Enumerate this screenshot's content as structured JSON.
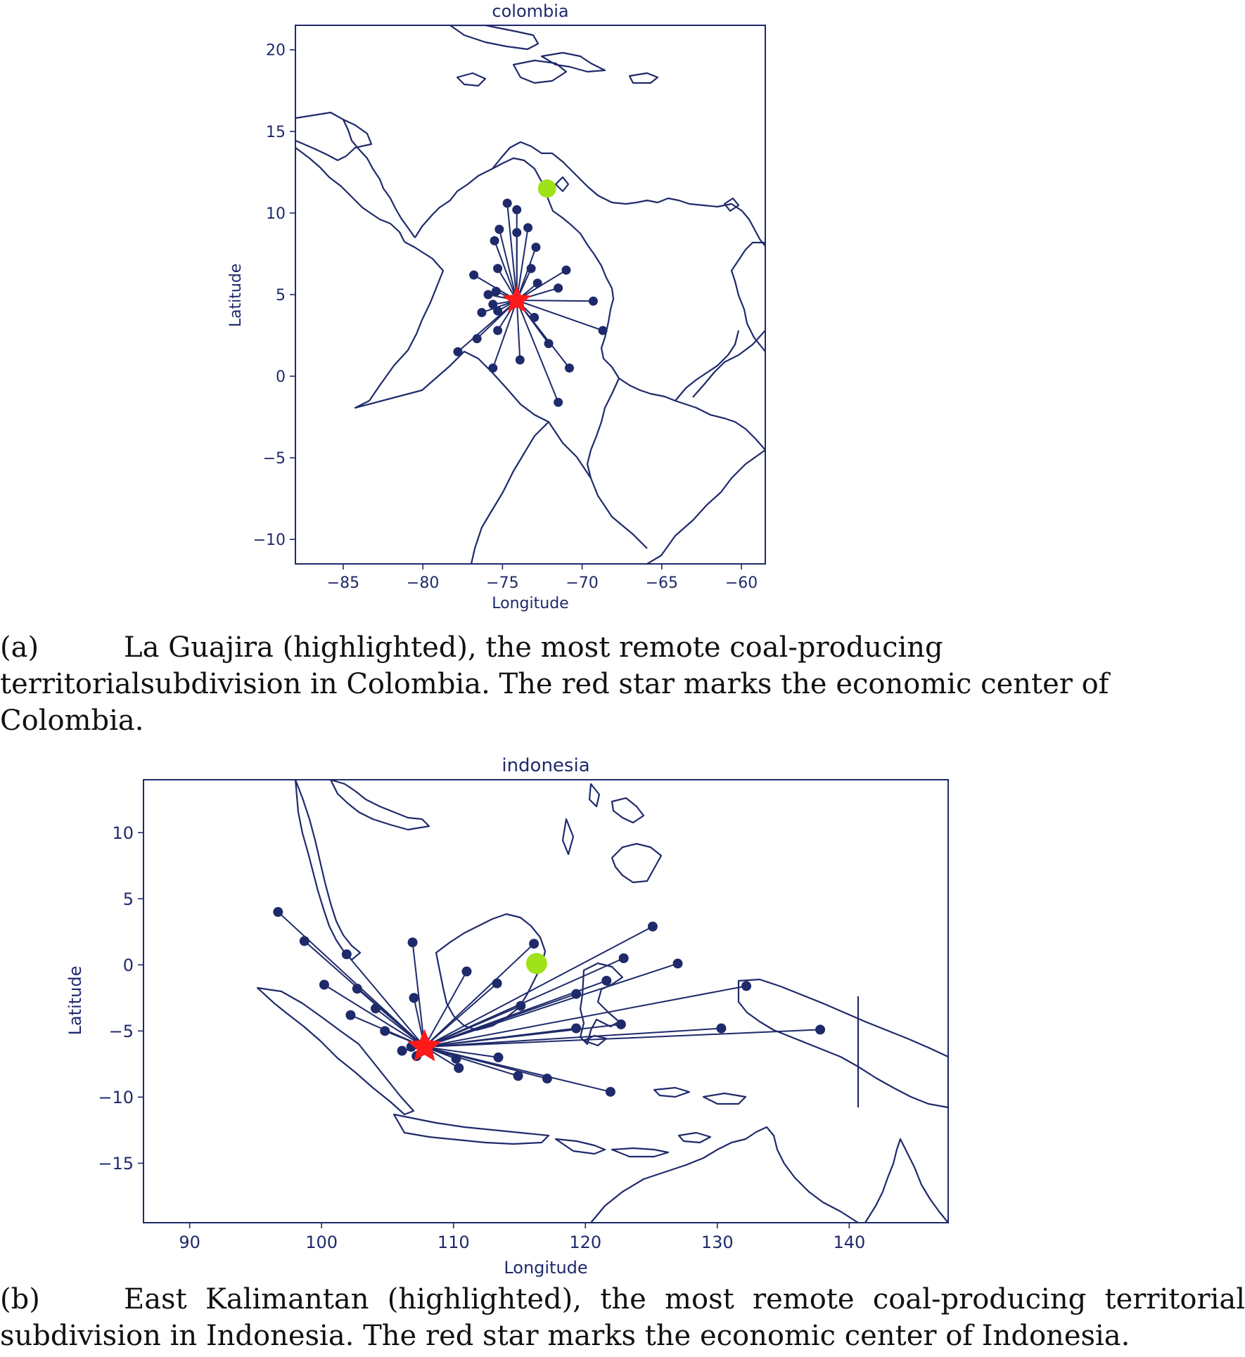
{
  "style": {
    "axis_color": "#1f2a6b",
    "connector_color": "#1f2a6b",
    "star_color": "#ff1a1a",
    "highlight_color": "#9fe21a"
  },
  "maps": [
    {
      "id": "colombia",
      "title": "colombia",
      "xlabel": "Longitude",
      "ylabel": "Latitude",
      "xlim": [
        -88,
        -58.5
      ],
      "ylim": [
        -11.5,
        21.5
      ],
      "xticks": [
        -85,
        -80,
        -75,
        -70,
        -65,
        -60
      ],
      "yticks": [
        20,
        15,
        10,
        5,
        0,
        -5,
        -10
      ],
      "center": {
        "lon": -74.1,
        "lat": 4.65,
        "marker": "red-star"
      },
      "highlight": {
        "lon": -72.2,
        "lat": 11.5,
        "region": "La Guajira"
      },
      "points": [
        [
          -74.7,
          10.6
        ],
        [
          -74.1,
          10.2
        ],
        [
          -75.2,
          9.0
        ],
        [
          -74.1,
          8.8
        ],
        [
          -73.4,
          9.1
        ],
        [
          -75.5,
          8.3
        ],
        [
          -72.9,
          7.9
        ],
        [
          -75.3,
          6.6
        ],
        [
          -73.2,
          6.6
        ],
        [
          -71.0,
          6.5
        ],
        [
          -76.8,
          6.2
        ],
        [
          -72.8,
          5.7
        ],
        [
          -71.5,
          5.4
        ],
        [
          -75.9,
          5.0
        ],
        [
          -75.4,
          5.2
        ],
        [
          -75.6,
          4.4
        ],
        [
          -69.3,
          4.6
        ],
        [
          -76.3,
          3.9
        ],
        [
          -75.3,
          4.0
        ],
        [
          -73.0,
          3.6
        ],
        [
          -68.7,
          2.8
        ],
        [
          -75.3,
          2.8
        ],
        [
          -76.6,
          2.3
        ],
        [
          -72.1,
          2.0
        ],
        [
          -77.8,
          1.5
        ],
        [
          -73.9,
          1.0
        ],
        [
          -70.8,
          0.5
        ],
        [
          -75.6,
          0.5
        ],
        [
          -71.5,
          -1.6
        ]
      ]
    },
    {
      "id": "indonesia",
      "title": "indonesia",
      "xlabel": "Longitude",
      "ylabel": "Latitude",
      "xlim": [
        86.5,
        147.5
      ],
      "ylim": [
        -19.5,
        14
      ],
      "xticks": [
        90,
        100,
        110,
        120,
        130,
        140
      ],
      "yticks": [
        10,
        5,
        0,
        -5,
        -10,
        -15
      ],
      "center": {
        "lon": 107.8,
        "lat": -6.2,
        "marker": "red-star"
      },
      "highlight": {
        "lon": 116.3,
        "lat": 0.1,
        "region": "East Kalimantan"
      },
      "points": [
        [
          96.7,
          4.0
        ],
        [
          98.7,
          1.8
        ],
        [
          101.9,
          0.8
        ],
        [
          100.2,
          -1.5
        ],
        [
          102.7,
          -1.8
        ],
        [
          104.1,
          -3.3
        ],
        [
          102.2,
          -3.8
        ],
        [
          104.8,
          -5.0
        ],
        [
          106.1,
          -6.5
        ],
        [
          106.8,
          -6.2
        ],
        [
          107.2,
          -6.9
        ],
        [
          106.9,
          1.7
        ],
        [
          107.0,
          -2.5
        ],
        [
          111.0,
          -0.5
        ],
        [
          113.3,
          -1.4
        ],
        [
          116.1,
          1.6
        ],
        [
          115.1,
          -3.1
        ],
        [
          110.2,
          -7.1
        ],
        [
          110.4,
          -7.8
        ],
        [
          113.4,
          -7.0
        ],
        [
          114.9,
          -8.4
        ],
        [
          117.1,
          -8.6
        ],
        [
          121.9,
          -9.6
        ],
        [
          119.3,
          -2.2
        ],
        [
          119.3,
          -4.8
        ],
        [
          121.6,
          -1.2
        ],
        [
          122.7,
          -4.5
        ],
        [
          122.9,
          0.5
        ],
        [
          125.1,
          2.9
        ],
        [
          127.0,
          0.1
        ],
        [
          132.2,
          -1.6
        ],
        [
          130.3,
          -4.8
        ],
        [
          137.8,
          -4.9
        ]
      ]
    }
  ],
  "captions": [
    {
      "label": "(a)",
      "text": "La Guajira (highlighted), the most remote coal-producing territorialsubdivision in Colombia. The red star marks the economic center of Colombia."
    },
    {
      "label": "(b)",
      "text": "East Kalimantan (highlighted), the most remote coal-producing territorial subdivision in Indonesia. The red star marks the economic center of Indonesia."
    }
  ]
}
